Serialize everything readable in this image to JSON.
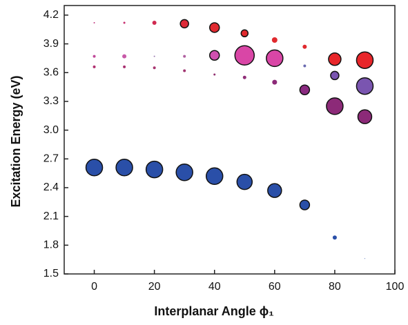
{
  "chart_data": {
    "type": "scatter",
    "xlabel": "Interplanar Angle ϕ₁",
    "ylabel": "Excitation Energy (eV)",
    "x": [
      0,
      10,
      20,
      30,
      40,
      50,
      60,
      70,
      80,
      90
    ],
    "xlim": [
      -10,
      100
    ],
    "xticks": [
      0,
      20,
      40,
      60,
      80,
      100
    ],
    "ylim": [
      1.5,
      4.3
    ],
    "yticks": [
      1.5,
      1.8,
      2.1,
      2.4,
      2.7,
      {
        "value": 3,
        "label": "3.0"
      },
      3.3,
      3.6,
      3.9,
      4.2
    ],
    "series": [
      {
        "values": [
          4.12,
          4.12,
          4.12,
          4.11,
          4.07,
          4.01,
          3.94,
          3.87,
          3.74,
          3.73
        ],
        "sizes": [
          1,
          1.5,
          3,
          6,
          7,
          5,
          4,
          3,
          9,
          12
        ],
        "colors": [
          "#c03a80",
          "#c83070",
          "#d02a50",
          "#de2a38",
          "#e02a30",
          "#e12a2e",
          "#e02a2e",
          "#e02a2e",
          "#e8262a",
          "#e8262a"
        ]
      },
      {
        "values": [
          3.77,
          3.77,
          3.77,
          3.77,
          3.78,
          3.78,
          3.75,
          3.67,
          3.57,
          3.46
        ],
        "sizes": [
          2,
          3,
          1,
          2,
          7,
          14,
          12,
          2,
          6,
          12
        ],
        "colors": [
          "#c04a9a",
          "#c85aa8",
          "#9a7ab0",
          "#b060a0",
          "#d050b0",
          "#d946a6",
          "#d946a6",
          "#6a6ab0",
          "#7a55b0",
          "#7a55b0"
        ]
      },
      {
        "values": [
          3.66,
          3.66,
          3.65,
          3.62,
          3.58,
          3.55,
          3.5,
          3.42,
          3.25,
          3.14
        ],
        "sizes": [
          2,
          2,
          2,
          2,
          1.5,
          2.5,
          3.5,
          7,
          12,
          10
        ],
        "colors": [
          "#b03070",
          "#a83070",
          "#a83570",
          "#a03570",
          "#903070",
          "#902e78",
          "#8c2a78",
          "#8a2a80",
          "#8c2a78",
          "#8c2a78"
        ]
      },
      {
        "values": [
          2.61,
          2.61,
          2.59,
          2.56,
          2.52,
          2.46,
          2.37,
          2.22,
          1.88,
          1.66
        ],
        "sizes": [
          12,
          12,
          12,
          12,
          12,
          11,
          10,
          7,
          3,
          0.5
        ],
        "colors": [
          "#2a4fa8",
          "#2a4fa8",
          "#2a4fa8",
          "#2a4fa8",
          "#2a4fa8",
          "#2a4fa8",
          "#2a4fa8",
          "#2a4fa8",
          "#2a4fa8",
          "#2a4fa8"
        ]
      }
    ]
  }
}
